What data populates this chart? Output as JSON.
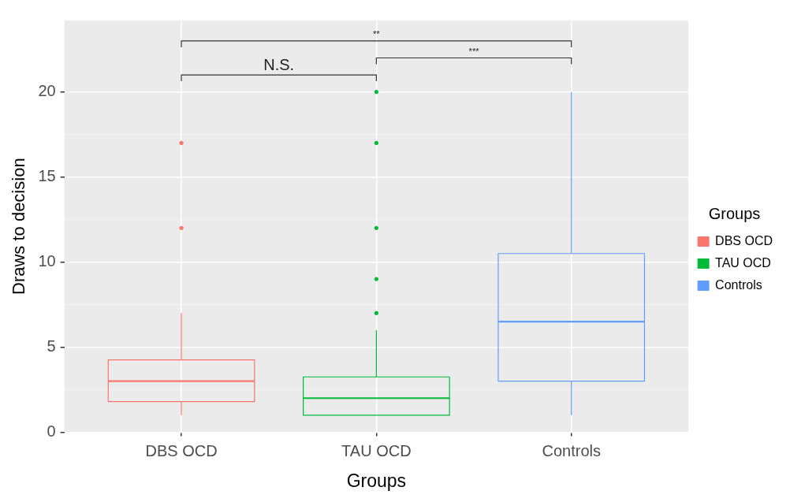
{
  "chart_data": {
    "type": "box",
    "xlabel": "Groups",
    "ylabel": "Draws to decision",
    "legend_title": "Groups",
    "legend": "right",
    "grid": true,
    "categories": [
      "DBS OCD",
      "TAU OCD",
      "Controls"
    ],
    "series": [
      {
        "name": "DBS OCD",
        "color": "#f8766d",
        "boxes": [
          {
            "low": 1,
            "q1": 1.8,
            "median": 3,
            "q3": 4.25,
            "high": 7,
            "outliers": [
              12,
              17
            ]
          },
          null,
          null
        ]
      },
      {
        "name": "TAU OCD",
        "color": "#00ba38",
        "boxes": [
          null,
          {
            "low": 1,
            "q1": 1,
            "median": 2,
            "q3": 3.25,
            "high": 6,
            "outliers": [
              7,
              9,
              12,
              17,
              20
            ]
          },
          null
        ]
      },
      {
        "name": "Controls",
        "color": "#619cff",
        "boxes": [
          null,
          null,
          {
            "low": 1,
            "q1": 3,
            "median": 6.5,
            "q3": 10.5,
            "high": 20
          }
        ]
      }
    ],
    "ylim": [
      0,
      24.2
    ],
    "yticks": [
      0,
      5,
      10,
      15,
      20
    ],
    "annotations": [
      "N.S.",
      "***",
      "**"
    ]
  }
}
